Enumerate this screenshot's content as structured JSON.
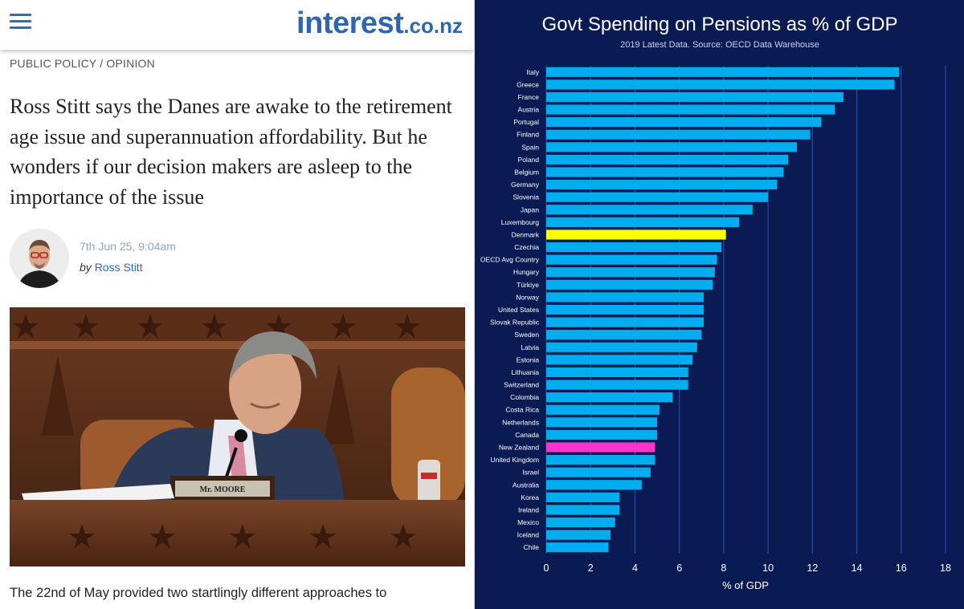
{
  "header": {
    "logo_main": "interest",
    "logo_tld": ".co.nz"
  },
  "article": {
    "category": "PUBLIC POLICY / OPINION",
    "headline": "Ross Stitt says the Danes are awake to the retirement age issue and superannuation affordability. But he wonders if our decision makers are asleep to the importance of the issue",
    "date": "7th Jun 25, 9:04am",
    "by": "by",
    "author": "Ross Stitt",
    "nameplate": "Mr. MOORE",
    "lead": "The 22nd of May provided two startlingly different approaches to"
  },
  "colors": {
    "background": "#0a1a52",
    "bar": "#00aeef",
    "highlight_denmark": "#ffff00",
    "highlight_nz": "#ff33cc",
    "gridline": "#2b4aa0",
    "logo": "#2f66b0"
  },
  "chart_data": {
    "type": "bar",
    "orientation": "horizontal",
    "title": "Govt Spending on Pensions as % of GDP",
    "subtitle": "2019 Latest Data. Source: OECD Data Warehouse",
    "xlabel": "% of GDP",
    "ylabel": "",
    "xlim": [
      0,
      18
    ],
    "xticks": [
      0,
      2,
      4,
      6,
      8,
      10,
      12,
      14,
      16,
      18
    ],
    "grid": "vertical",
    "legend": "none",
    "highlighted": {
      "Denmark": "#ffff00",
      "New Zealand": "#ff33cc"
    },
    "categories": [
      "Italy",
      "Greece",
      "France",
      "Austria",
      "Portugal",
      "Finland",
      "Spain",
      "Poland",
      "Belgium",
      "Germany",
      "Slovenia",
      "Japan",
      "Luxembourg",
      "Denmark",
      "Czechia",
      "OECD Avg Country",
      "Hungary",
      "Türkiye",
      "Norway",
      "United States",
      "Slovak Republic",
      "Sweden",
      "Latvia",
      "Estonia",
      "Lithuania",
      "Switzerland",
      "Colombia",
      "Costa Rica",
      "Netherlands",
      "Canada",
      "New Zealand",
      "United Kingdom",
      "Israel",
      "Australia",
      "Korea",
      "Ireland",
      "Mexico",
      "Iceland",
      "Chile"
    ],
    "values": [
      15.9,
      15.7,
      13.4,
      13.0,
      12.4,
      11.9,
      11.3,
      10.9,
      10.7,
      10.4,
      10.0,
      9.3,
      8.7,
      8.1,
      7.9,
      7.7,
      7.6,
      7.5,
      7.1,
      7.1,
      7.1,
      7.0,
      6.8,
      6.6,
      6.4,
      6.4,
      5.7,
      5.1,
      5.0,
      5.0,
      4.9,
      4.9,
      4.7,
      4.3,
      3.3,
      3.3,
      3.1,
      2.9,
      2.8
    ]
  }
}
